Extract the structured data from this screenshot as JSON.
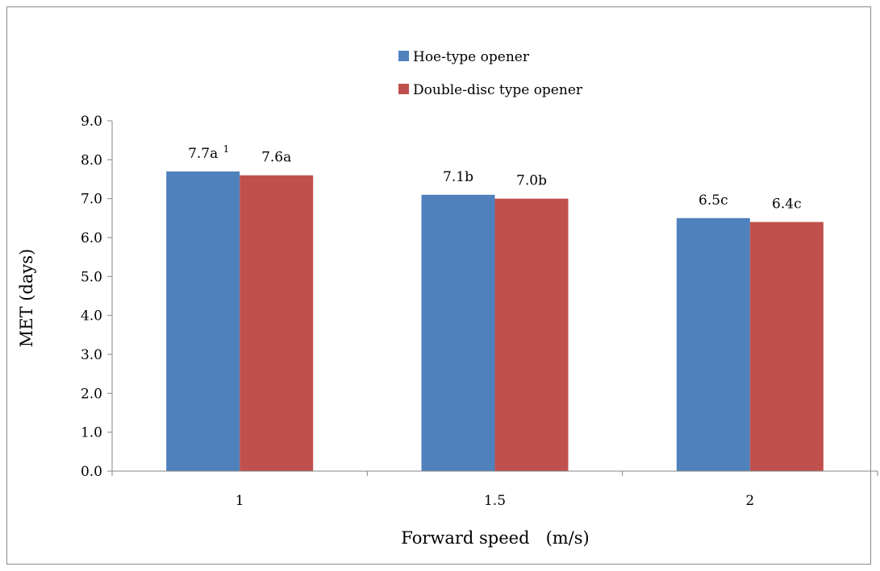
{
  "chart_data": {
    "type": "bar",
    "title": "",
    "xlabel": "Forward speed   (m/s)",
    "ylabel": "MET (days)",
    "categories": [
      "1",
      "1.5",
      "2"
    ],
    "ylim": [
      0,
      9
    ],
    "yticks": [
      "0.0",
      "1.0",
      "2.0",
      "3.0",
      "4.0",
      "5.0",
      "6.0",
      "7.0",
      "8.0",
      "9.0"
    ],
    "grid": false,
    "legend_position": "top-center",
    "series": [
      {
        "name": "Hoe-type opener",
        "color": "#4f81bd",
        "values": [
          7.7,
          7.1,
          6.5
        ],
        "labels": [
          "7.7a",
          "7.1b",
          "6.5c"
        ]
      },
      {
        "name": "Double-disc type opener",
        "color": "#c0504d",
        "values": [
          7.6,
          7.0,
          6.4
        ],
        "labels": [
          "7.6a",
          "7.0b",
          "6.4c"
        ]
      }
    ],
    "annotations": {
      "footnote_mark": "1"
    }
  }
}
